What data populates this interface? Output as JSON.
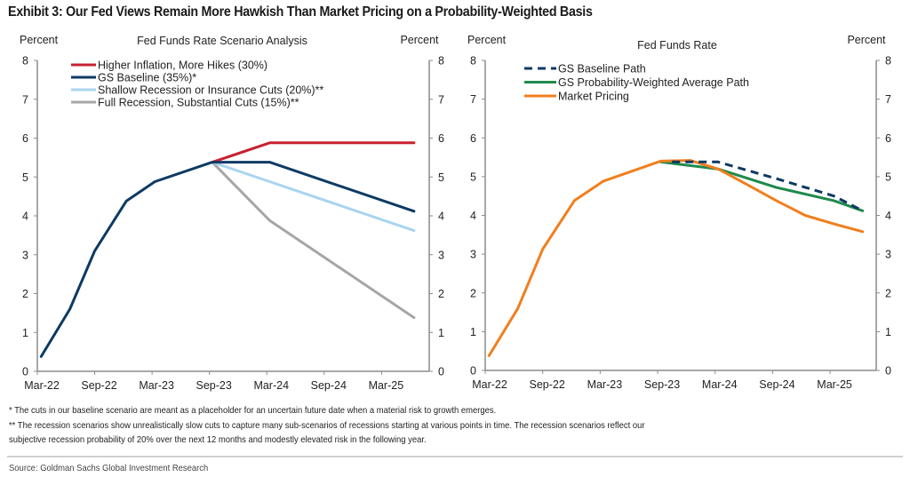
{
  "title": "Exhibit 3: Our Fed Views Remain More Hawkish Than Market Pricing on a Probability-Weighted Basis",
  "notes": [
    "* The cuts in our baseline scenario are meant as a placeholder for an uncertain future date when a material risk to growth emerges.",
    "** The recession scenarios show unrealistically slow cuts to capture many sub-scenarios of recessions starting at various points in time.  The recession scenarios reflect our",
    "subjective recession probability of 20% over the next 12 months and modestly elevated risk in the following year."
  ],
  "source": "Source: Goldman Sachs Global Investment Research",
  "chart_data": [
    {
      "type": "line",
      "title": "Fed Funds Rate Scenario Analysis",
      "ylabel_left": "Percent",
      "ylabel_right": "Percent",
      "xlabel": "",
      "x_unit": "months since Mar-22",
      "xlim": [
        0,
        41
      ],
      "ylim": [
        0,
        8
      ],
      "yticks": [
        0,
        1,
        2,
        3,
        4,
        5,
        6,
        7,
        8
      ],
      "xtick_positions": [
        0,
        6,
        12,
        18,
        24,
        30,
        36
      ],
      "xtick_labels": [
        "Mar-22",
        "Sep-22",
        "Mar-23",
        "Sep-23",
        "Mar-24",
        "Sep-24",
        "Mar-25"
      ],
      "legend_position": "top-center",
      "grid": false,
      "series": [
        {
          "name": "Higher Inflation, More Hikes (30%)",
          "color": "#c8202f",
          "dashed": false,
          "points": [
            [
              18.3,
              5.38
            ],
            [
              24.3,
              5.88
            ],
            [
              39.4,
              5.88
            ]
          ]
        },
        {
          "name": "GS Baseline (35%)*",
          "color": "#0d3a63",
          "dashed": false,
          "points": [
            [
              0.4,
              0.38
            ],
            [
              3.4,
              1.6
            ],
            [
              6.0,
              3.1
            ],
            [
              9.3,
              4.38
            ],
            [
              12.3,
              4.88
            ],
            [
              18.3,
              5.38
            ],
            [
              24.3,
              5.38
            ],
            [
              39.4,
              4.12
            ]
          ]
        },
        {
          "name": "Shallow Recession or Insurance Cuts (20%)**",
          "color": "#a9d4ef",
          "dashed": false,
          "points": [
            [
              18.3,
              5.38
            ],
            [
              24.3,
              4.88
            ],
            [
              39.4,
              3.62
            ]
          ]
        },
        {
          "name": "Full Recession, Substantial Cuts (15%)**",
          "color": "#a6a6a6",
          "dashed": false,
          "points": [
            [
              18.3,
              5.38
            ],
            [
              24.3,
              3.88
            ],
            [
              39.4,
              1.38
            ]
          ]
        }
      ],
      "draw_order": [
        3,
        2,
        0,
        1
      ]
    },
    {
      "type": "line",
      "title": "Fed Funds Rate",
      "ylabel_left": "Percent",
      "ylabel_right": "Percent",
      "xlabel": "",
      "x_unit": "months since Mar-22",
      "xlim": [
        0,
        41
      ],
      "ylim": [
        0,
        8
      ],
      "yticks": [
        0,
        1,
        2,
        3,
        4,
        5,
        6,
        7,
        8
      ],
      "xtick_positions": [
        0,
        6,
        12,
        18,
        24,
        30,
        36
      ],
      "xtick_labels": [
        "Mar-22",
        "Sep-22",
        "Mar-23",
        "Sep-23",
        "Mar-24",
        "Sep-24",
        "Mar-25"
      ],
      "legend_position": "top-center",
      "grid": false,
      "series": [
        {
          "name": "GS Baseline Path",
          "color": "#0d3a63",
          "dashed": true,
          "points": [
            [
              19.5,
              5.38
            ],
            [
              24.3,
              5.38
            ],
            [
              30.4,
              4.95
            ],
            [
              36.4,
              4.5
            ],
            [
              39.4,
              4.12
            ]
          ]
        },
        {
          "name": "GS Probability-Weighted Average Path",
          "color": "#1e8a4c",
          "dashed": false,
          "points": [
            [
              18.3,
              5.38
            ],
            [
              24.3,
              5.2
            ],
            [
              30.4,
              4.72
            ],
            [
              36.4,
              4.38
            ],
            [
              39.4,
              4.12
            ]
          ]
        },
        {
          "name": "Market Pricing",
          "color": "#f07f1e",
          "dashed": false,
          "points": [
            [
              0.4,
              0.38
            ],
            [
              3.4,
              1.6
            ],
            [
              6.0,
              3.13
            ],
            [
              9.3,
              4.38
            ],
            [
              12.3,
              4.88
            ],
            [
              18.3,
              5.4
            ],
            [
              21.4,
              5.42
            ],
            [
              24.3,
              5.2
            ],
            [
              27.3,
              4.8
            ],
            [
              30.4,
              4.38
            ],
            [
              33.4,
              4.0
            ],
            [
              36.4,
              3.78
            ],
            [
              39.4,
              3.58
            ]
          ]
        }
      ],
      "draw_order": [
        1,
        2,
        0
      ]
    }
  ]
}
